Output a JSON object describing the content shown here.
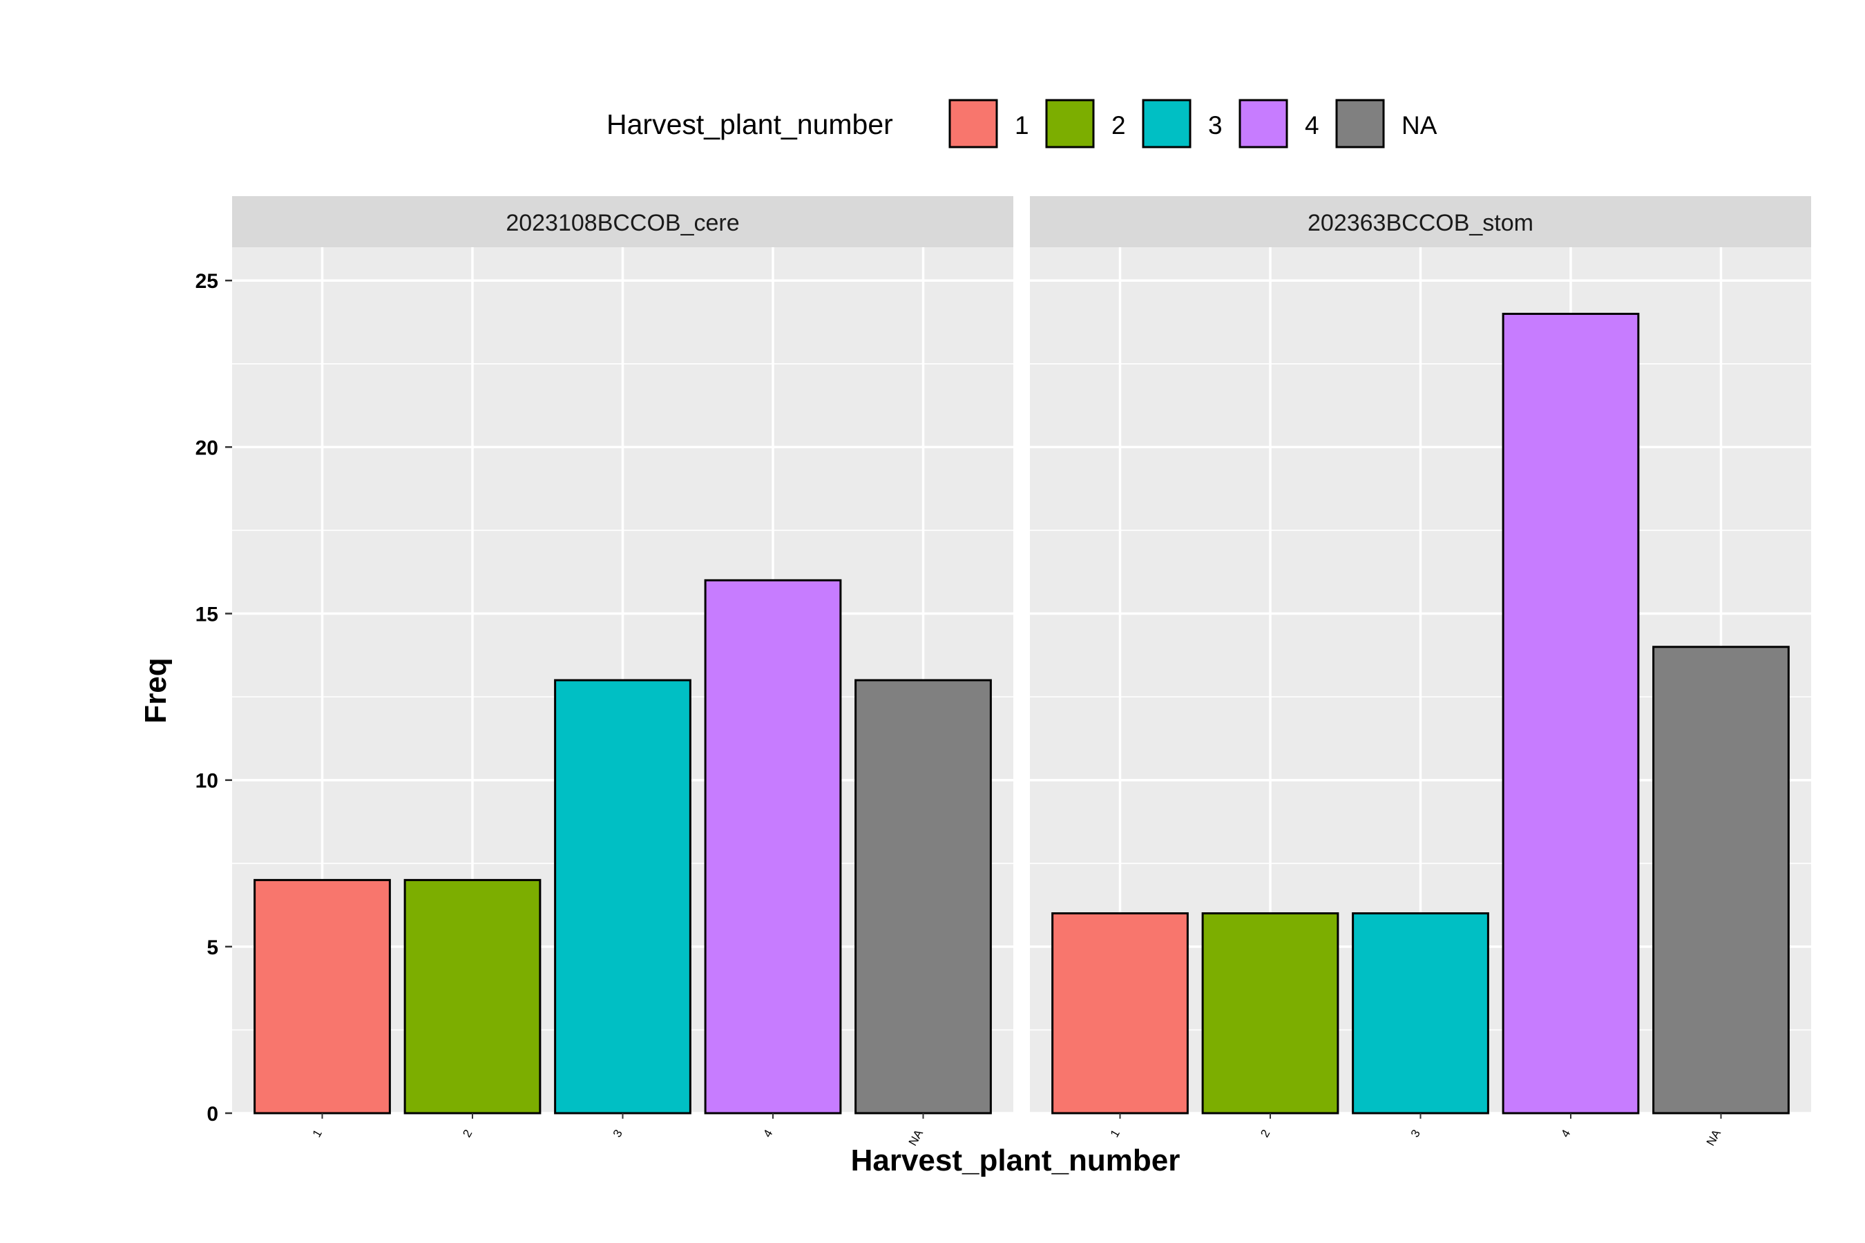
{
  "chart_data": {
    "type": "bar",
    "facets": [
      "2023108BCCOB_cere",
      "202363BCCOB_stom"
    ],
    "categories": [
      "1",
      "2",
      "3",
      "4",
      "NA"
    ],
    "series": [
      {
        "facet": "2023108BCCOB_cere",
        "values": [
          7,
          7,
          13,
          16,
          13
        ]
      },
      {
        "facet": "202363BCCOB_stom",
        "values": [
          6,
          6,
          6,
          24,
          14
        ]
      }
    ],
    "xlabel": "Harvest_plant_number",
    "ylabel": "Freq",
    "ylim": [
      0,
      26
    ],
    "yticks": [
      0,
      5,
      10,
      15,
      20,
      25
    ],
    "legend": {
      "title": "Harvest_plant_number",
      "position": "top",
      "entries": [
        "1",
        "2",
        "3",
        "4",
        "NA"
      ]
    },
    "colors": [
      "#F8766D",
      "#7CAE00",
      "#00BFC4",
      "#C77CFF",
      "#808080"
    ],
    "panel_background": "#EBEBEB",
    "strip_background": "#D9D9D9",
    "grid": true
  }
}
